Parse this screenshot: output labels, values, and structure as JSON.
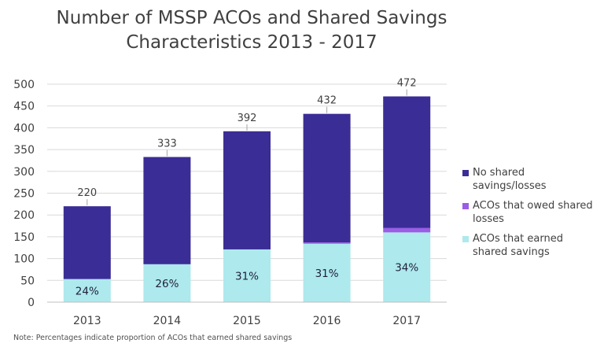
{
  "title_line1": "Number of MSSP ACOs and Shared Savings",
  "title_line2": "Characteristics 2013 - 2017",
  "note": "Note: Percentages indicate proportion of ACOs that earned shared savings",
  "chart_data": {
    "type": "bar",
    "stacked": true,
    "categories": [
      "2013",
      "2014",
      "2015",
      "2016",
      "2017"
    ],
    "series": [
      {
        "name": "ACOs that earned shared savings",
        "color": "#ade9ed",
        "values": [
          53,
          87,
          121,
          134,
          160
        ]
      },
      {
        "name": "ACOs that owed shared losses",
        "color": "#9b5de5",
        "values": [
          0,
          0,
          0,
          3,
          10
        ]
      },
      {
        "name": "No shared savings/losses",
        "color": "#3b2d96",
        "values": [
          167,
          246,
          271,
          295,
          302
        ]
      }
    ],
    "totals": [
      "220",
      "333",
      "392",
      "432",
      "472"
    ],
    "percent_labels": [
      "24%",
      "26%",
      "31%",
      "31%",
      "34%"
    ],
    "ylim": [
      0,
      500
    ],
    "yticks": [
      "0",
      "50",
      "100",
      "150",
      "200",
      "250",
      "300",
      "350",
      "400",
      "450",
      "500"
    ],
    "grid": true,
    "legend_position": "right",
    "xlabel": "",
    "ylabel": ""
  }
}
